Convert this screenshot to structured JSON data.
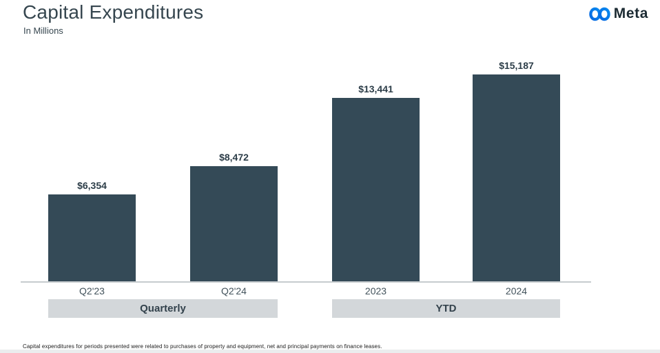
{
  "header": {
    "title": "Capital Expenditures",
    "subtitle": "In Millions"
  },
  "logo": {
    "wordmark": "Meta",
    "infinity_color_start": "#0768E1",
    "infinity_color_end": "#0A8AF0",
    "wordmark_color": "#1C2B33"
  },
  "chart_data": {
    "type": "bar",
    "title": "Capital Expenditures",
    "units_label": "In Millions",
    "categories": [
      "Q2'23",
      "Q2'24",
      "2023",
      "2024"
    ],
    "values": [
      6354,
      8472,
      13441,
      15187
    ],
    "value_labels": [
      "$6,354",
      "$8,472",
      "$13,441",
      "$15,187"
    ],
    "groups": [
      {
        "label": "Quarterly",
        "categories": [
          "Q2'23",
          "Q2'24"
        ]
      },
      {
        "label": "YTD",
        "categories": [
          "2023",
          "2024"
        ]
      }
    ],
    "ylim": [
      0,
      15187
    ],
    "bar_color": "#344A57",
    "grid": false,
    "legend": false,
    "axis_line_color": "#C6CBCE",
    "band_background": "#D3D7DA"
  },
  "footnote": "Capital expenditures for periods presented were related to purchases of property and equipment, net and principal payments on finance leases."
}
